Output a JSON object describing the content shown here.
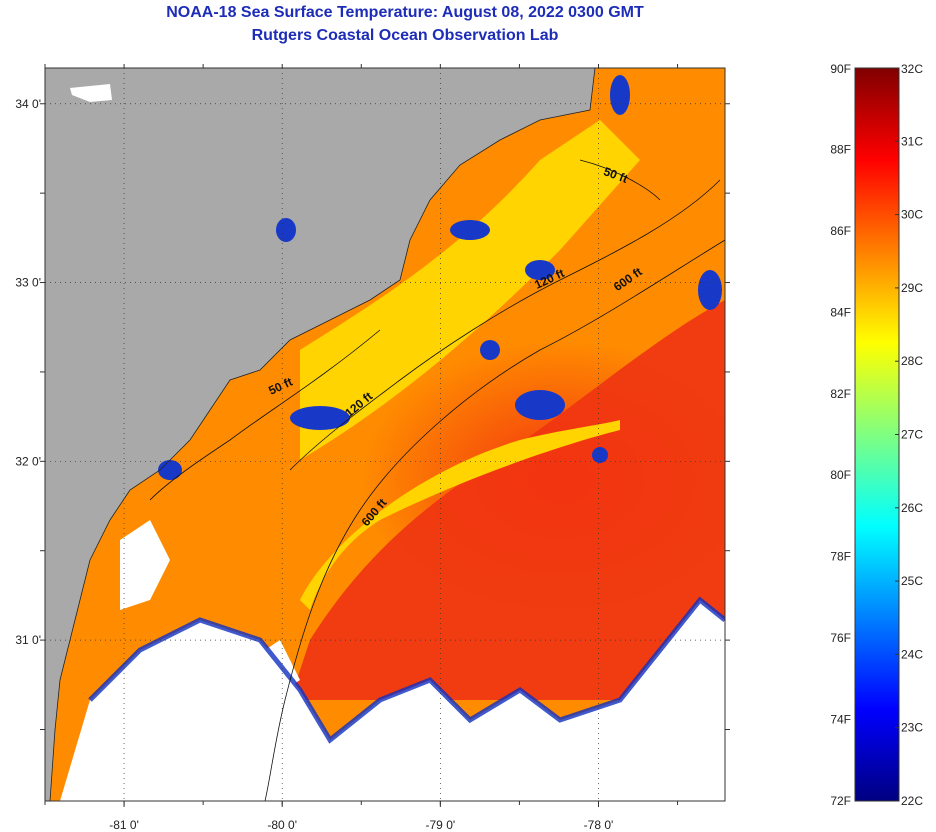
{
  "header": {
    "title": "NOAA-18 Sea Surface Temperature:  August 08, 2022 0300 GMT",
    "subtitle": "Rutgers Coastal Ocean Observation Lab"
  },
  "map": {
    "lon_range": [
      -81.5,
      -77.2
    ],
    "lat_range": [
      30.1,
      34.2
    ],
    "lon_ticks": [
      {
        "value": -81,
        "label": "-81 0'"
      },
      {
        "value": -80,
        "label": "-80 0'"
      },
      {
        "value": -79,
        "label": "-79 0'"
      },
      {
        "value": -78,
        "label": "-78 0'"
      }
    ],
    "lat_ticks": [
      {
        "value": 34,
        "label": "34 0'"
      },
      {
        "value": 33,
        "label": "33 0'"
      },
      {
        "value": 32,
        "label": "32 0'"
      },
      {
        "value": 31,
        "label": "31 0'"
      }
    ],
    "contour_labels": [
      {
        "text": "50 ft",
        "lon": -77.9,
        "lat": 33.58,
        "angle": 20
      },
      {
        "text": "50 ft",
        "lon": -80.0,
        "lat": 32.4,
        "angle": -25
      },
      {
        "text": "120 ft",
        "lon": -78.3,
        "lat": 33.0,
        "angle": -25
      },
      {
        "text": "120 ft",
        "lon": -79.5,
        "lat": 32.3,
        "angle": -40
      },
      {
        "text": "600 ft",
        "lon": -77.8,
        "lat": 33.0,
        "angle": -35
      },
      {
        "text": "600 ft",
        "lon": -79.4,
        "lat": 31.7,
        "angle": -50
      }
    ],
    "colors": {
      "land": "#a9a9a9",
      "ocean_cool": "#ffd400",
      "ocean_mid": "#ff8c00",
      "ocean_warm": "#f03c10",
      "cloud": "#ffffff"
    }
  },
  "colorbar": {
    "fahrenheit": [
      "90F",
      "88F",
      "86F",
      "84F",
      "82F",
      "80F",
      "78F",
      "76F",
      "74F",
      "72F"
    ],
    "celsius": [
      "32C",
      "31C",
      "30C",
      "29C",
      "28C",
      "27C",
      "26C",
      "25C",
      "24C",
      "23C",
      "22C"
    ],
    "stops": [
      "#000080",
      "#0000ff",
      "#0080ff",
      "#00ffff",
      "#80ff80",
      "#ffff00",
      "#ff8000",
      "#ff0000",
      "#800000"
    ]
  }
}
